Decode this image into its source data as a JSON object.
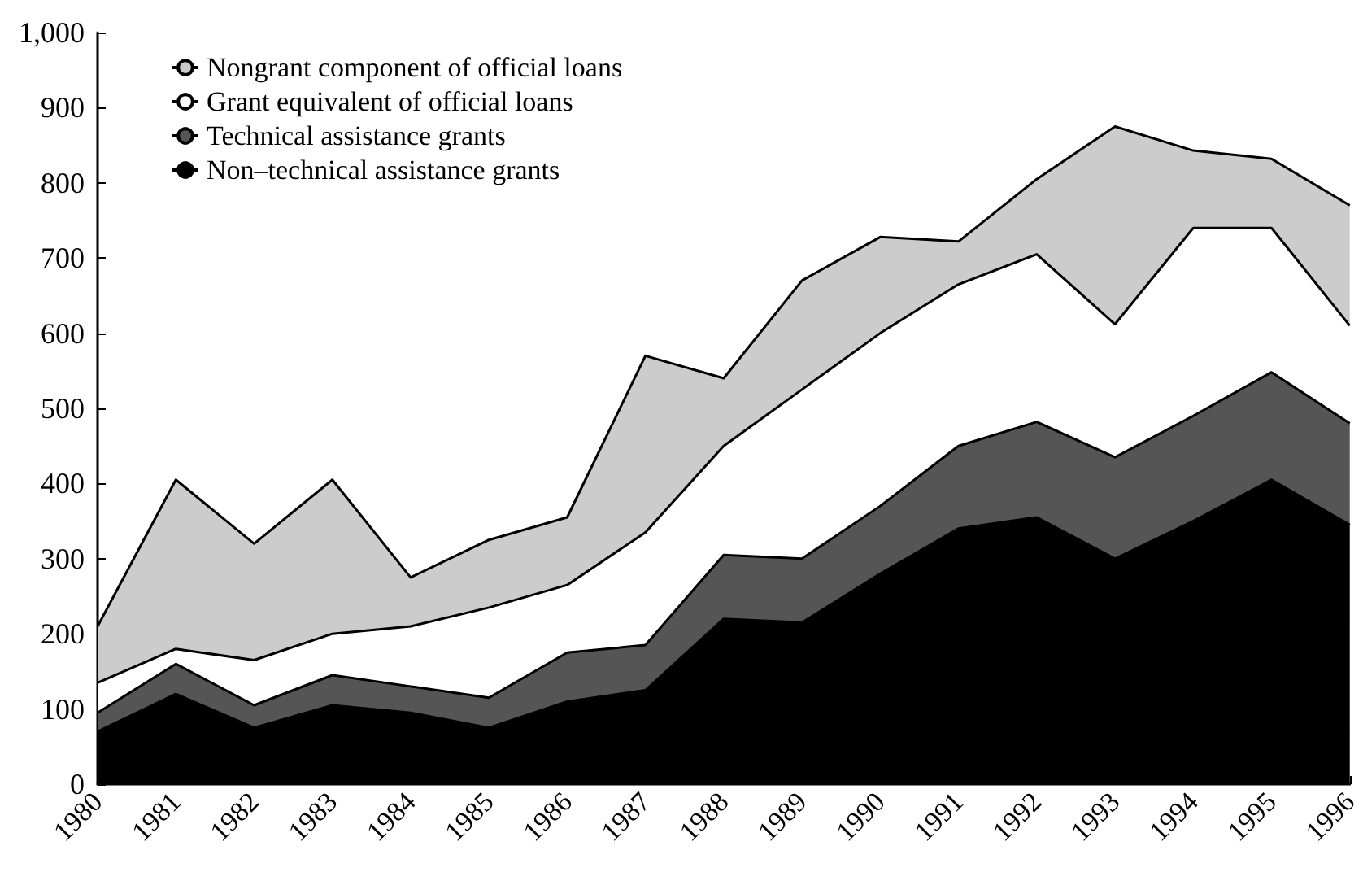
{
  "chart_data": {
    "type": "area",
    "stacked": true,
    "categories": [
      "1980",
      "1981",
      "1982",
      "1983",
      "1984",
      "1985",
      "1986",
      "1987",
      "1988",
      "1989",
      "1990",
      "1991",
      "1992",
      "1993",
      "1994",
      "1995",
      "1996"
    ],
    "series": [
      {
        "name": "Non–technical assistance grants",
        "color": "#000000",
        "values": [
          70,
          120,
          75,
          105,
          95,
          75,
          110,
          125,
          220,
          215,
          280,
          340,
          355,
          300,
          350,
          405,
          345
        ]
      },
      {
        "name": "Technical assistance grants",
        "color": "#555555",
        "values": [
          25,
          40,
          30,
          40,
          35,
          40,
          65,
          60,
          85,
          85,
          90,
          110,
          127,
          135,
          140,
          143,
          135
        ]
      },
      {
        "name": "Grant equivalent of official loans",
        "color": "#ffffff",
        "values": [
          40,
          20,
          60,
          55,
          80,
          120,
          90,
          150,
          145,
          225,
          230,
          215,
          223,
          177,
          250,
          192,
          130
        ]
      },
      {
        "name": "Nongrant component of official loans",
        "color": "#cccccc",
        "values": [
          75,
          225,
          155,
          205,
          65,
          90,
          90,
          235,
          90,
          145,
          128,
          57,
          100,
          263,
          103,
          92,
          160
        ]
      }
    ],
    "ylim": [
      0,
      1000
    ],
    "yticks": [
      0,
      100,
      200,
      300,
      400,
      500,
      600,
      700,
      800,
      900,
      {
        "value": 1000,
        "label": "1,000"
      }
    ],
    "grid": false,
    "legend": "top left"
  }
}
